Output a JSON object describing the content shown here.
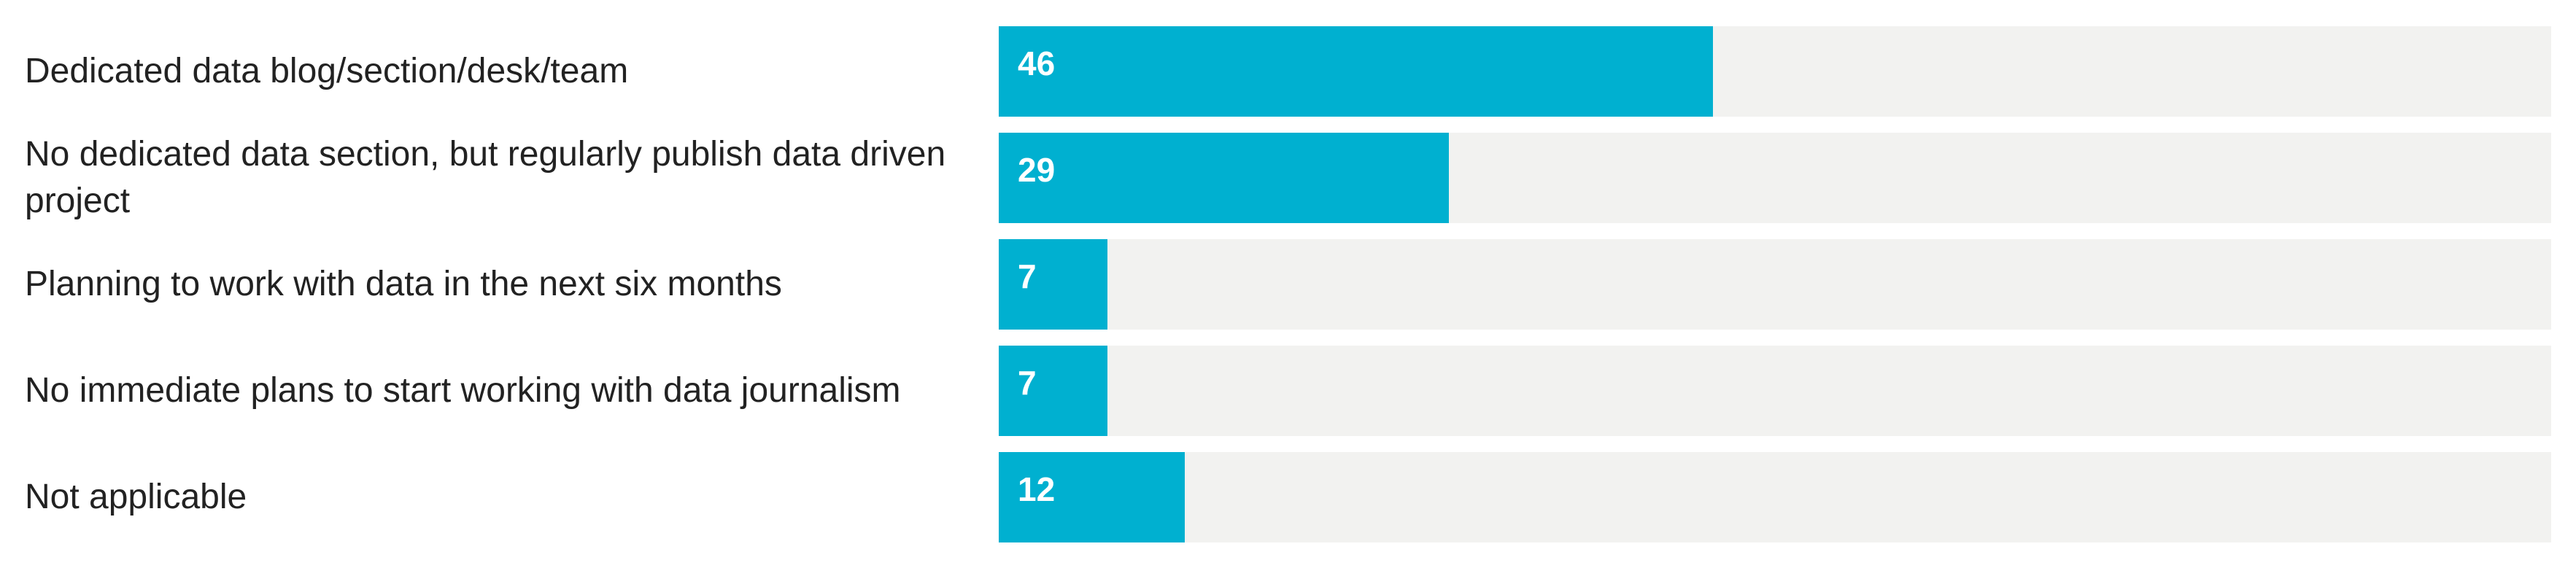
{
  "chart_data": {
    "type": "bar",
    "orientation": "horizontal",
    "categories": [
      "Dedicated data blog/section/desk/team",
      "No dedicated data section, but regularly publish data driven project",
      "Planning to work with data in the next six months",
      "No immediate plans to start working with data journalism",
      "Not applicable"
    ],
    "values": [
      46,
      29,
      7,
      7,
      12
    ],
    "color": "#00b0d0",
    "track_color": "#f2f2f0",
    "xlim": [
      0,
      100
    ]
  }
}
